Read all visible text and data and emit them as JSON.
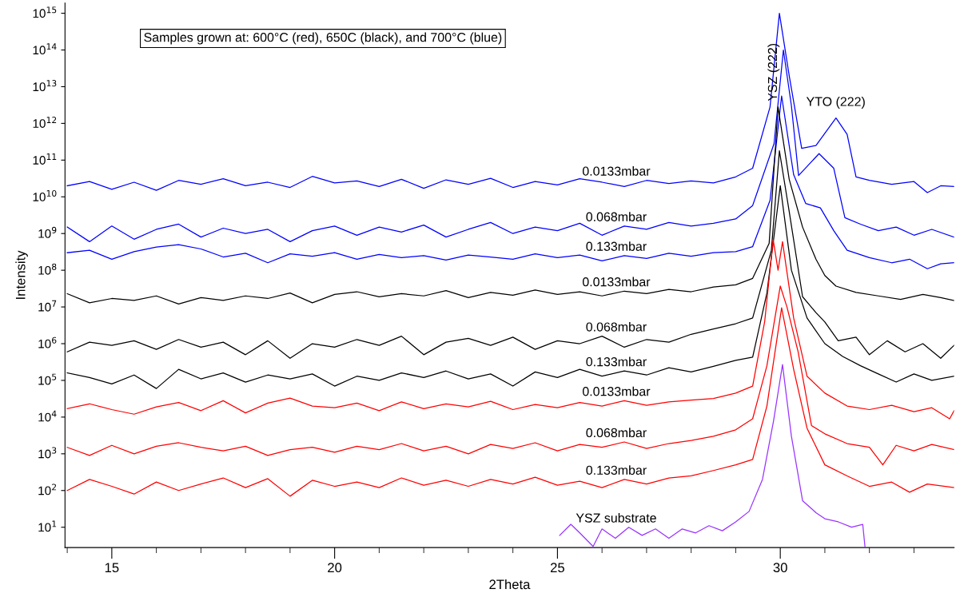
{
  "chart_data": {
    "type": "line",
    "xlabel": "2Theta",
    "ylabel": "Intensity",
    "log": "y",
    "grid": false,
    "marker": "none",
    "line_style": "solid",
    "xlim": [
      13.95,
      33.9
    ],
    "ylim": [
      2.8,
      1900000000000000.0
    ],
    "xticks": [
      15,
      20,
      25,
      30
    ],
    "yticks": [
      {
        "value": 10,
        "label": "10$^{1}$"
      },
      {
        "value": 100,
        "label": "10$^{2}$"
      },
      {
        "value": 1000.0,
        "label": "10$^{3}$"
      },
      {
        "value": 10000.0,
        "label": "10$^{4}$"
      },
      {
        "value": 100000.0,
        "label": "10$^{5}$"
      },
      {
        "value": 1000000.0,
        "label": "10$^{6}$"
      },
      {
        "value": 10000000.0,
        "label": "10$^{7}$"
      },
      {
        "value": 100000000.0,
        "label": "10$^{8}$"
      },
      {
        "value": 1000000000.0,
        "label": "10$^{9}$"
      },
      {
        "value": 10000000000.0,
        "label": "10$^{10}$"
      },
      {
        "value": 100000000000.0,
        "label": "10$^{11}$"
      },
      {
        "value": 1000000000000.0,
        "label": "10$^{12}$"
      },
      {
        "value": 10000000000000.0,
        "label": "10$^{13}$"
      },
      {
        "value": 100000000000000.0,
        "label": "10$^{14}$"
      },
      {
        "value": 1000000000000000.0,
        "label": "10$^{15}$"
      }
    ],
    "series": [
      {
        "name": "0.0133mbar",
        "color": "#0000ff",
        "x": [
          14.0,
          14.5,
          15.0,
          15.5,
          16.0,
          16.5,
          17.0,
          17.5,
          18.0,
          18.5,
          19.0,
          19.5,
          20.0,
          20.5,
          21.0,
          21.5,
          22.0,
          22.5,
          23.0,
          23.5,
          24.0,
          24.5,
          25.0,
          25.5,
          26.0,
          26.5,
          27.0,
          27.5,
          28.0,
          28.5,
          29.0,
          29.38,
          29.77,
          29.98,
          30.2,
          30.48,
          30.8,
          31.25,
          31.5,
          31.7,
          32.0,
          32.5,
          33.0,
          33.3,
          33.6,
          33.9
        ],
        "values": [
          20000000000.0,
          26000000000.0,
          16000000000.0,
          25000000000.0,
          15000000000.0,
          28000000000.0,
          22000000000.0,
          31000000000.0,
          20000000000.0,
          25000000000.0,
          18000000000.0,
          36000000000.0,
          24000000000.0,
          27000000000.0,
          19000000000.0,
          30000000000.0,
          17000000000.0,
          29000000000.0,
          22000000000.0,
          32000000000.0,
          18000000000.0,
          26000000000.0,
          21000000000.0,
          31000000000.0,
          25000000000.0,
          19000000000.0,
          28000000000.0,
          23000000000.0,
          27000000000.0,
          24000000000.0,
          35000000000.0,
          60000000000.0,
          2800000000000.0,
          1000000000000000.0,
          20000000000000.0,
          210000000000.0,
          250000000000.0,
          1400000000000.0,
          500000000000.0,
          35000000000.0,
          28000000000.0,
          22000000000.0,
          26000000000.0,
          13000000000.0,
          20000000000.0,
          19000000000.0
        ]
      },
      {
        "name": "0.068mbar",
        "color": "#0000ff",
        "x": [
          14.0,
          14.5,
          15.0,
          15.5,
          16.0,
          16.5,
          17.0,
          17.5,
          18.0,
          18.5,
          19.0,
          19.5,
          20.0,
          20.5,
          21.0,
          21.5,
          22.0,
          22.5,
          23.0,
          23.5,
          24.0,
          24.5,
          25.0,
          25.5,
          26.0,
          26.5,
          27.0,
          27.5,
          28.0,
          28.5,
          29.0,
          29.38,
          29.86,
          30.07,
          30.25,
          30.41,
          30.87,
          31.2,
          31.45,
          31.8,
          32.2,
          32.6,
          33.0,
          33.4,
          33.9
        ],
        "values": [
          1500000000.0,
          600000000.0,
          1600000000.0,
          700000000.0,
          1300000000.0,
          1800000000.0,
          800000000.0,
          1400000000.0,
          1000000000.0,
          1300000000.0,
          600000000.0,
          1200000000.0,
          1600000000.0,
          900000000.0,
          1500000000.0,
          1100000000.0,
          1700000000.0,
          800000000.0,
          1300000000.0,
          2000000000.0,
          1000000000.0,
          1500000000.0,
          1200000000.0,
          1900000000.0,
          900000000.0,
          1600000000.0,
          1300000000.0,
          2000000000.0,
          1600000000.0,
          1900000000.0,
          2500000000.0,
          5800000000.0,
          280000000000.0,
          100000000000000.0,
          3000000000000.0,
          38000000000.0,
          150000000000.0,
          60000000000.0,
          2700000000.0,
          1800000000.0,
          1200000000.0,
          1500000000.0,
          900000000.0,
          1300000000.0,
          800000000.0
        ]
      },
      {
        "name": "0.133mbar",
        "color": "#0000ff",
        "x": [
          14.0,
          14.5,
          15.0,
          15.5,
          16.0,
          16.5,
          17.0,
          17.5,
          18.0,
          18.5,
          19.0,
          19.5,
          20.0,
          20.5,
          21.0,
          21.5,
          22.0,
          22.5,
          23.0,
          23.5,
          24.0,
          24.5,
          25.0,
          25.5,
          26.0,
          26.5,
          27.0,
          27.5,
          28.0,
          28.5,
          29.0,
          29.38,
          29.77,
          30.03,
          30.3,
          30.57,
          30.9,
          31.2,
          31.5,
          32.0,
          32.5,
          32.9,
          33.3,
          33.6,
          33.9
        ],
        "values": [
          300000000.0,
          350000000.0,
          200000000.0,
          320000000.0,
          430000000.0,
          500000000.0,
          380000000.0,
          230000000.0,
          290000000.0,
          160000000.0,
          280000000.0,
          240000000.0,
          300000000.0,
          200000000.0,
          270000000.0,
          220000000.0,
          250000000.0,
          190000000.0,
          260000000.0,
          230000000.0,
          200000000.0,
          280000000.0,
          220000000.0,
          260000000.0,
          180000000.0,
          250000000.0,
          210000000.0,
          290000000.0,
          240000000.0,
          300000000.0,
          320000000.0,
          440000000.0,
          8000000000.0,
          5600000000000.0,
          40000000000.0,
          6600000000.0,
          5000000000.0,
          1200000000.0,
          350000000.0,
          220000000.0,
          160000000.0,
          200000000.0,
          110000000.0,
          150000000.0,
          160000000.0
        ]
      },
      {
        "name": "0.0133mbar",
        "color": "#000000",
        "x": [
          14.0,
          14.5,
          15.0,
          15.5,
          16.0,
          16.5,
          17.0,
          17.5,
          18.0,
          18.5,
          19.0,
          19.5,
          20.0,
          20.5,
          21.0,
          21.5,
          22.0,
          22.5,
          23.0,
          23.5,
          24.0,
          24.5,
          25.0,
          25.5,
          26.0,
          26.5,
          27.0,
          27.5,
          28.0,
          28.5,
          29.0,
          29.38,
          29.75,
          29.95,
          30.2,
          30.5,
          30.8,
          31.0,
          31.25,
          31.7,
          32.2,
          32.7,
          33.2,
          33.6,
          33.9
        ],
        "values": [
          23000000.0,
          13000000.0,
          17000000.0,
          15000000.0,
          20000000.0,
          12000000.0,
          18000000.0,
          15000000.0,
          20000000.0,
          17000000.0,
          24000000.0,
          13000000.0,
          22000000.0,
          26000000.0,
          19000000.0,
          23000000.0,
          20000000.0,
          28000000.0,
          18000000.0,
          25000000.0,
          21000000.0,
          29000000.0,
          22000000.0,
          26000000.0,
          20000000.0,
          27000000.0,
          23000000.0,
          30000000.0,
          26000000.0,
          35000000.0,
          40000000.0,
          60000000.0,
          540000000.0,
          2800000000000.0,
          30000000000.0,
          1500000000.0,
          200000000.0,
          72000000.0,
          37000000.0,
          25000000.0,
          20000000.0,
          16000000.0,
          22000000.0,
          18000000.0,
          15000000.0
        ]
      },
      {
        "name": "0.068mbar",
        "color": "#000000",
        "x": [
          14.0,
          14.5,
          15.0,
          15.5,
          16.0,
          16.5,
          17.0,
          17.5,
          18.0,
          18.5,
          19.0,
          19.5,
          20.0,
          20.5,
          21.0,
          21.5,
          22.0,
          22.5,
          23.0,
          23.5,
          24.0,
          24.5,
          25.0,
          25.5,
          26.0,
          26.5,
          27.0,
          27.5,
          28.0,
          28.5,
          29.0,
          29.38,
          29.8,
          29.98,
          30.2,
          30.5,
          30.8,
          31.0,
          31.3,
          31.7,
          32.0,
          32.4,
          32.8,
          33.2,
          33.6,
          33.9
        ],
        "values": [
          600000.0,
          1100000.0,
          900000.0,
          1200000.0,
          700000.0,
          1300000.0,
          800000.0,
          1100000.0,
          500000.0,
          1200000.0,
          400000.0,
          1000000.0,
          800000.0,
          1300000.0,
          900000.0,
          1600000.0,
          500000.0,
          1100000.0,
          1400000.0,
          900000.0,
          1500000.0,
          700000.0,
          1200000.0,
          1000000.0,
          1600000.0,
          800000.0,
          1300000.0,
          1100000.0,
          1800000.0,
          2500000.0,
          3500000.0,
          5000000.0,
          350000000.0,
          180000000000.0,
          4000000000.0,
          19000000.0,
          7000000.0,
          3900000.0,
          1200000.0,
          1500000.0,
          500000.0,
          1200000.0,
          600000.0,
          1000000.0,
          400000.0,
          900000.0
        ]
      },
      {
        "name": "0.133mbar",
        "color": "#000000",
        "x": [
          14.0,
          14.5,
          15.0,
          15.5,
          16.0,
          16.5,
          17.0,
          17.5,
          18.0,
          18.5,
          19.0,
          19.5,
          20.0,
          20.5,
          21.0,
          21.5,
          22.0,
          22.5,
          23.0,
          23.5,
          24.0,
          24.5,
          25.0,
          25.5,
          26.0,
          26.5,
          27.0,
          27.5,
          28.0,
          28.5,
          29.0,
          29.38,
          29.7,
          30.0,
          30.25,
          30.6,
          31.0,
          31.4,
          31.8,
          32.2,
          32.6,
          33.0,
          33.4,
          33.9
        ],
        "values": [
          160000.0,
          120000.0,
          80000.0,
          140000.0,
          60000.0,
          200000.0,
          110000.0,
          160000.0,
          90000.0,
          140000.0,
          110000.0,
          150000.0,
          70000.0,
          130000.0,
          100000.0,
          160000.0,
          120000.0,
          180000.0,
          110000.0,
          150000.0,
          70000.0,
          170000.0,
          120000.0,
          200000.0,
          130000.0,
          180000.0,
          140000.0,
          220000.0,
          170000.0,
          240000.0,
          350000.0,
          430000.0,
          24000000.0,
          20000000000.0,
          100000000.0,
          5000000.0,
          1000000.0,
          450000.0,
          250000.0,
          150000.0,
          90000.0,
          150000.0,
          100000.0,
          130000.0
        ]
      },
      {
        "name": "0.0133mbar",
        "color": "#ff0000",
        "x": [
          14.0,
          14.5,
          15.0,
          15.5,
          16.0,
          16.5,
          17.0,
          17.5,
          18.0,
          18.5,
          19.0,
          19.5,
          20.0,
          20.5,
          21.0,
          21.5,
          22.0,
          22.5,
          23.0,
          23.5,
          24.0,
          24.5,
          25.0,
          25.5,
          26.0,
          26.5,
          27.0,
          27.5,
          28.0,
          28.5,
          29.0,
          29.38,
          29.65,
          29.84,
          29.95,
          30.05,
          30.3,
          30.6,
          31.0,
          31.5,
          32.0,
          32.5,
          33.0,
          33.4,
          33.8,
          33.9
        ],
        "values": [
          17000.0,
          23000.0,
          16000.0,
          12000.0,
          19000.0,
          25000.0,
          15000.0,
          28000.0,
          13000.0,
          24000.0,
          33000.0,
          20000.0,
          18000.0,
          24000.0,
          15000.0,
          26000.0,
          17000.0,
          23000.0,
          19000.0,
          27000.0,
          16000.0,
          22000.0,
          18000.0,
          25000.0,
          20000.0,
          28000.0,
          21000.0,
          26000.0,
          29000.0,
          32000.0,
          45000.0,
          70000.0,
          4000000.0,
          690000000.0,
          100000000.0,
          600000000.0,
          5000000.0,
          130000.0,
          45000.0,
          20000.0,
          16000.0,
          21000.0,
          14000.0,
          18000.0,
          9000.0,
          15000.0
        ]
      },
      {
        "name": "0.068mbar",
        "color": "#ff0000",
        "x": [
          14.0,
          14.5,
          15.0,
          15.5,
          16.0,
          16.5,
          17.0,
          17.5,
          18.0,
          18.5,
          19.0,
          19.5,
          20.0,
          20.5,
          21.0,
          21.5,
          22.0,
          22.5,
          23.0,
          23.5,
          24.0,
          24.5,
          25.0,
          25.5,
          26.0,
          26.5,
          27.0,
          27.5,
          28.0,
          28.5,
          29.0,
          29.38,
          29.7,
          30.0,
          30.15,
          30.4,
          30.7,
          31.0,
          31.5,
          32.0,
          32.3,
          32.6,
          33.0,
          33.4,
          33.9
        ],
        "values": [
          1500.0,
          900.0,
          1700.0,
          1000.0,
          1600.0,
          2000.0,
          1500.0,
          1200.0,
          1600.0,
          900.0,
          1300.0,
          1500.0,
          1100.0,
          1600.0,
          1300.0,
          1900.0,
          1200.0,
          1600.0,
          1000.0,
          1800.0,
          1400.0,
          2000.0,
          1200.0,
          1800.0,
          1500.0,
          2100.0,
          1400.0,
          1900.0,
          2300.0,
          3000.0,
          4500.0,
          9000.0,
          250000.0,
          37000000.0,
          10000000.0,
          600000.0,
          5900.0,
          3500.0,
          1900.0,
          1500.0,
          500.0,
          1700.0,
          1200.0,
          1800.0,
          1300.0
        ]
      },
      {
        "name": "0.133mbar",
        "color": "#ff0000",
        "x": [
          14.0,
          14.5,
          15.0,
          15.5,
          16.0,
          16.5,
          17.0,
          17.5,
          18.0,
          18.5,
          19.0,
          19.5,
          20.0,
          20.5,
          21.0,
          21.5,
          22.0,
          22.5,
          23.0,
          23.5,
          24.0,
          24.5,
          25.0,
          25.5,
          26.0,
          26.5,
          27.0,
          27.5,
          28.0,
          28.5,
          29.0,
          29.38,
          29.7,
          30.03,
          30.3,
          30.6,
          31.0,
          31.5,
          32.0,
          32.5,
          32.9,
          33.3,
          33.9
        ],
        "values": [
          100.0,
          200.0,
          130.0,
          80.0,
          170.0,
          100.0,
          150.0,
          220.0,
          120.0,
          210.0,
          70.0,
          190.0,
          130.0,
          170.0,
          120.0,
          220.0,
          140.0,
          190.0,
          130.0,
          200.0,
          150.0,
          230.0,
          140.0,
          180.0,
          120.0,
          200.0,
          150.0,
          220.0,
          250.0,
          350.0,
          500.0,
          700.0,
          20000.0,
          9500000.0,
          200000.0,
          5000.0,
          500.0,
          250.0,
          130.0,
          170.0,
          90.0,
          150.0,
          120.0
        ]
      },
      {
        "name": "YSZ substrate",
        "color": "#9933ff",
        "x": [
          25.05,
          25.3,
          25.5,
          25.8,
          26.0,
          26.3,
          26.6,
          26.9,
          27.2,
          27.5,
          27.8,
          28.1,
          28.4,
          28.7,
          29.0,
          29.3,
          29.6,
          29.85,
          30.05,
          30.25,
          30.5,
          30.8,
          31.0,
          31.3,
          31.6,
          31.85,
          31.9
        ],
        "values": [
          6,
          12,
          7,
          3,
          9,
          5,
          10,
          6,
          9,
          5,
          9,
          7,
          11,
          8,
          14,
          27,
          200,
          8000,
          270000.0,
          3000,
          53,
          25,
          17,
          14,
          10,
          12,
          3
        ]
      }
    ],
    "annotations": [
      "Samples grown at: 600°C (red), 650C (black), and 700°C (blue)",
      "YTO (222)",
      "YSZ (222)"
    ]
  }
}
